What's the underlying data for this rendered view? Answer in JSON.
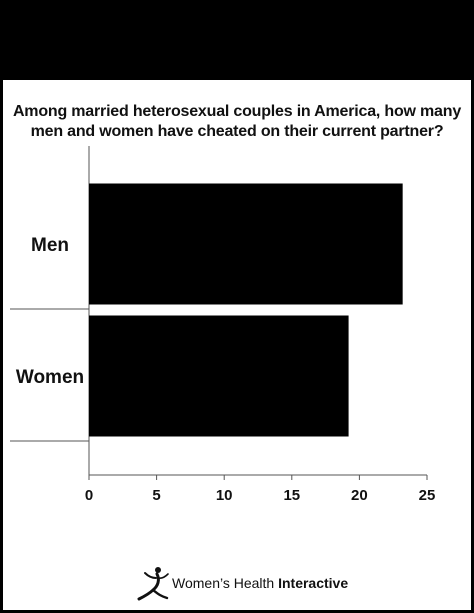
{
  "chart_data": {
    "type": "bar",
    "orientation": "horizontal",
    "title": "Among married heterosexual couples in America, how many men and women have cheated on their current partner?",
    "categories": [
      "Men",
      "Women"
    ],
    "values": [
      23.2,
      19.2
    ],
    "xlim": [
      0,
      25
    ],
    "xticks": [
      "0",
      "5",
      "10",
      "15",
      "20",
      "25"
    ],
    "bar_color": "#000000",
    "grid": false,
    "legend": "none"
  },
  "branding": {
    "name_regular": "Women’s Health",
    "name_bold": "Interactive",
    "logo_icon": "runner-figure-icon"
  }
}
